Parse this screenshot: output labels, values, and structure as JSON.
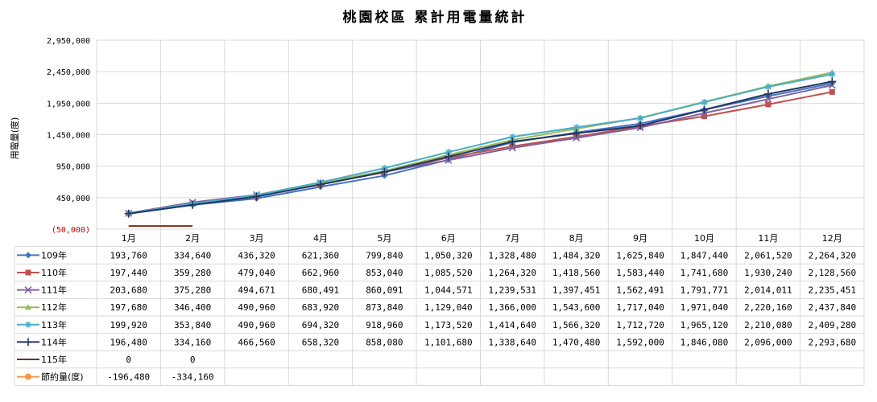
{
  "chart_data": {
    "type": "line",
    "title": "桃園校區  累計用電量統計",
    "ylabel": "用電量(度)",
    "ylim": [
      -50000,
      2950000
    ],
    "yticks": [
      -50000,
      450000,
      950000,
      1450000,
      1950000,
      2450000,
      2950000
    ],
    "ytick_labels": [
      "(50,000)",
      "450,000",
      "950,000",
      "1,450,000",
      "1,950,000",
      "2,450,000",
      "2,950,000"
    ],
    "grid": true,
    "legend": "table-left",
    "categories": [
      "1月",
      "2月",
      "3月",
      "4月",
      "5月",
      "6月",
      "7月",
      "8月",
      "9月",
      "10月",
      "11月",
      "12月"
    ],
    "series": [
      {
        "name": "109年",
        "color": "#4472C4",
        "marker": "diamond",
        "values": [
          193760,
          334640,
          436320,
          621360,
          799840,
          1050320,
          1328480,
          1484320,
          1625840,
          1847440,
          2061520,
          2264320
        ],
        "labels": [
          "193,760",
          "334,640",
          "436,320",
          "621,360",
          "799,840",
          "1,050,320",
          "1,328,480",
          "1,484,320",
          "1,625,840",
          "1,847,440",
          "2,061,520",
          "2,264,320"
        ]
      },
      {
        "name": "110年",
        "color": "#C0504D",
        "marker": "square",
        "values": [
          197440,
          359280,
          479040,
          662960,
          853040,
          1085520,
          1264320,
          1418560,
          1583440,
          1741680,
          1930240,
          2128560
        ],
        "labels": [
          "197,440",
          "359,280",
          "479,040",
          "662,960",
          "853,040",
          "1,085,520",
          "1,264,320",
          "1,418,560",
          "1,583,440",
          "1,741,680",
          "1,930,240",
          "2,128,560"
        ]
      },
      {
        "name": "111年",
        "color": "#8064A2",
        "marker": "x",
        "values": [
          203680,
          375280,
          494671,
          680491,
          860091,
          1044571,
          1239531,
          1397451,
          1562491,
          1791771,
          2014011,
          2235451
        ],
        "labels": [
          "203,680",
          "375,280",
          "494,671",
          "680,491",
          "860,091",
          "1,044,571",
          "1,239,531",
          "1,397,451",
          "1,562,491",
          "1,791,771",
          "2,014,011",
          "2,235,451"
        ]
      },
      {
        "name": "112年",
        "color": "#9BBB59",
        "marker": "triangle",
        "values": [
          197680,
          346400,
          490960,
          683920,
          873840,
          1129040,
          1366000,
          1543600,
          1717040,
          1971040,
          2220160,
          2437840
        ],
        "labels": [
          "197,680",
          "346,400",
          "490,960",
          "683,920",
          "873,840",
          "1,129,040",
          "1,366,000",
          "1,543,600",
          "1,717,040",
          "1,971,040",
          "2,220,160",
          "2,437,840"
        ]
      },
      {
        "name": "113年",
        "color": "#4BACC6",
        "marker": "star",
        "values": [
          199920,
          353840,
          490960,
          694320,
          918960,
          1173520,
          1414640,
          1566320,
          1712720,
          1965120,
          2210080,
          2409280
        ],
        "labels": [
          "199,920",
          "353,840",
          "490,960",
          "694,320",
          "918,960",
          "1,173,520",
          "1,414,640",
          "1,566,320",
          "1,712,720",
          "1,965,120",
          "2,210,080",
          "2,409,280"
        ]
      },
      {
        "name": "114年",
        "color": "#1F3864",
        "marker": "plus",
        "values": [
          196480,
          334160,
          466560,
          658320,
          858080,
          1101680,
          1338640,
          1470480,
          1592000,
          1846080,
          2096000,
          2293680
        ],
        "labels": [
          "196,480",
          "334,160",
          "466,560",
          "658,320",
          "858,080",
          "1,101,680",
          "1,338,640",
          "1,470,480",
          "1,592,000",
          "1,846,080",
          "2,096,000",
          "2,293,680"
        ]
      },
      {
        "name": "115年",
        "color": "#7B2C1B",
        "marker": "none",
        "values": [
          0,
          0,
          null,
          null,
          null,
          null,
          null,
          null,
          null,
          null,
          null,
          null
        ],
        "labels": [
          "0",
          "0",
          "",
          "",
          "",
          "",
          "",
          "",
          "",
          "",
          "",
          ""
        ]
      },
      {
        "name": "節約量(度)",
        "color": "#F79646",
        "marker": "circle",
        "values": [
          -196480,
          -334160,
          null,
          null,
          null,
          null,
          null,
          null,
          null,
          null,
          null,
          null
        ],
        "labels": [
          "-196,480",
          "-334,160",
          "",
          "",
          "",
          "",
          "",
          "",
          "",
          "",
          "",
          ""
        ]
      }
    ]
  }
}
